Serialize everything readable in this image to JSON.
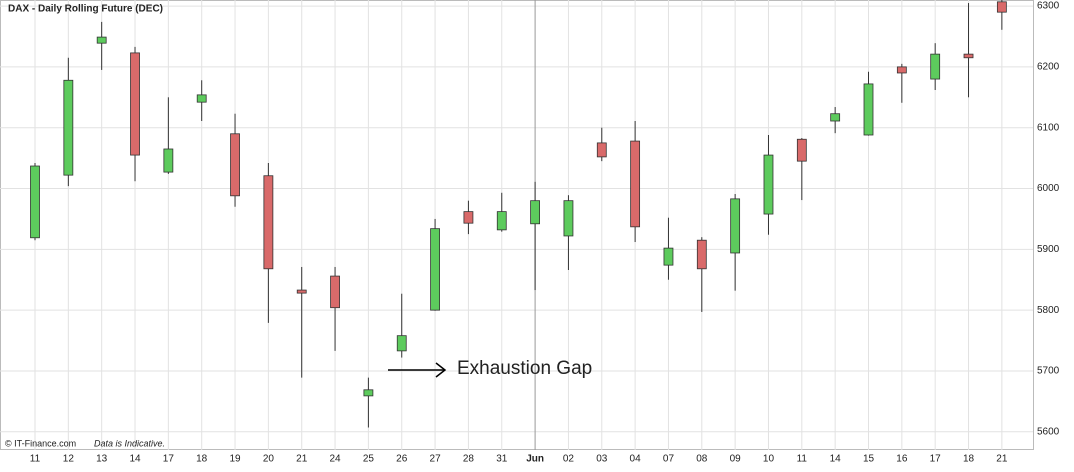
{
  "chart_data": {
    "type": "candlestick",
    "title": "DAX - Daily Rolling Future (DEC)",
    "source": "© IT-Finance.com",
    "note": "Data is Indicative.",
    "annotation": "Exhaustion Gap",
    "categories": [
      "11",
      "12",
      "13",
      "14",
      "17",
      "18",
      "19",
      "20",
      "21",
      "24",
      "25",
      "26",
      "27",
      "28",
      "31",
      "Jun",
      "02",
      "03",
      "04",
      "07",
      "08",
      "09",
      "10",
      "11",
      "14",
      "15",
      "16",
      "17",
      "18",
      "21"
    ],
    "open": [
      5919,
      6022,
      6239,
      6223,
      6027,
      6142,
      6090,
      6021,
      5833,
      5856,
      5659,
      5733,
      5800,
      5962,
      5932,
      5942,
      5922,
      6075,
      6078,
      5874,
      5915,
      5894,
      5958,
      6081,
      6111,
      6088,
      6200,
      6180,
      6221,
      6307
    ],
    "high": [
      6042,
      6215,
      6274,
      6233,
      6150,
      6178,
      6123,
      6042,
      5871,
      5871,
      5689,
      5827,
      5950,
      5980,
      5993,
      6011,
      5989,
      6100,
      6111,
      5952,
      5920,
      5991,
      6088,
      6083,
      6134,
      6192,
      6205,
      6239,
      6305,
      6315
    ],
    "low": [
      5915,
      6004,
      6195,
      6012,
      6024,
      6111,
      5970,
      5779,
      5689,
      5733,
      5607,
      5722,
      5799,
      5925,
      5929,
      5833,
      5866,
      6045,
      5912,
      5850,
      5797,
      5832,
      5924,
      5981,
      6091,
      6087,
      6141,
      6162,
      6150,
      6261
    ],
    "close": [
      6037,
      6178,
      6249,
      6055,
      6065,
      6154,
      5988,
      5868,
      5828,
      5804,
      5669,
      5758,
      5934,
      5943,
      5962,
      5980,
      5980,
      6052,
      5937,
      5902,
      5868,
      5983,
      6055,
      6045,
      6123,
      6172,
      6190,
      6221,
      6215,
      6290
    ],
    "up_color": "#5dcb5d",
    "down_color": "#d96a6a",
    "ylim": [
      5570,
      6310
    ],
    "yticks": [
      5600,
      5700,
      5800,
      5900,
      6000,
      6100,
      6200,
      6300
    ],
    "grid": true,
    "y_axis_side": "right"
  }
}
